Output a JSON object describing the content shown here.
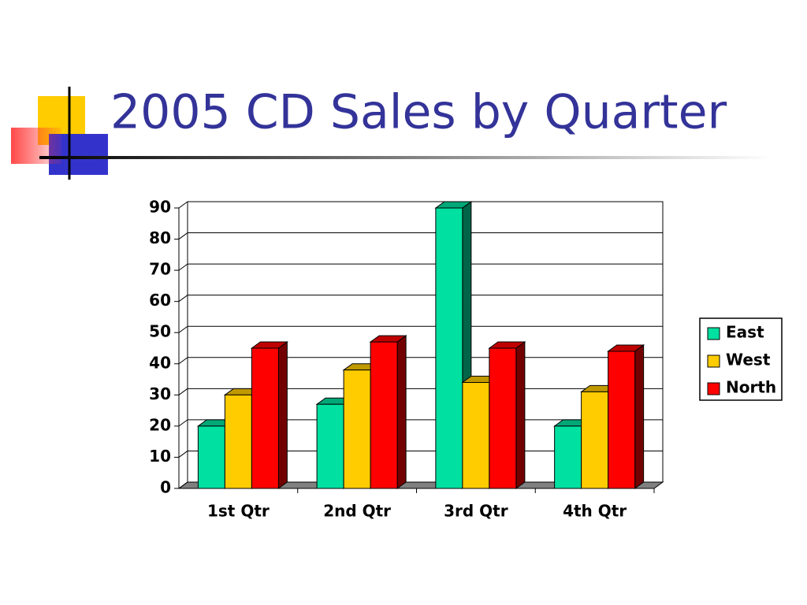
{
  "chart_data": {
    "type": "bar3d",
    "title": "2005 CD Sales by Quarter",
    "categories": [
      "1st Qtr",
      "2nd Qtr",
      "3rd Qtr",
      "4th Qtr"
    ],
    "series": [
      {
        "name": "East",
        "color": "#00e0a0",
        "values": [
          20,
          27,
          90,
          20
        ]
      },
      {
        "name": "West",
        "color": "#ffcc00",
        "values": [
          30,
          38,
          34,
          31
        ]
      },
      {
        "name": "North",
        "color": "#ff0000",
        "values": [
          45,
          47,
          45,
          44
        ]
      }
    ],
    "ylim": [
      0,
      90
    ],
    "yticks": [
      0,
      10,
      20,
      30,
      40,
      50,
      60,
      70,
      80,
      90
    ],
    "grid": true,
    "legend": "right"
  }
}
